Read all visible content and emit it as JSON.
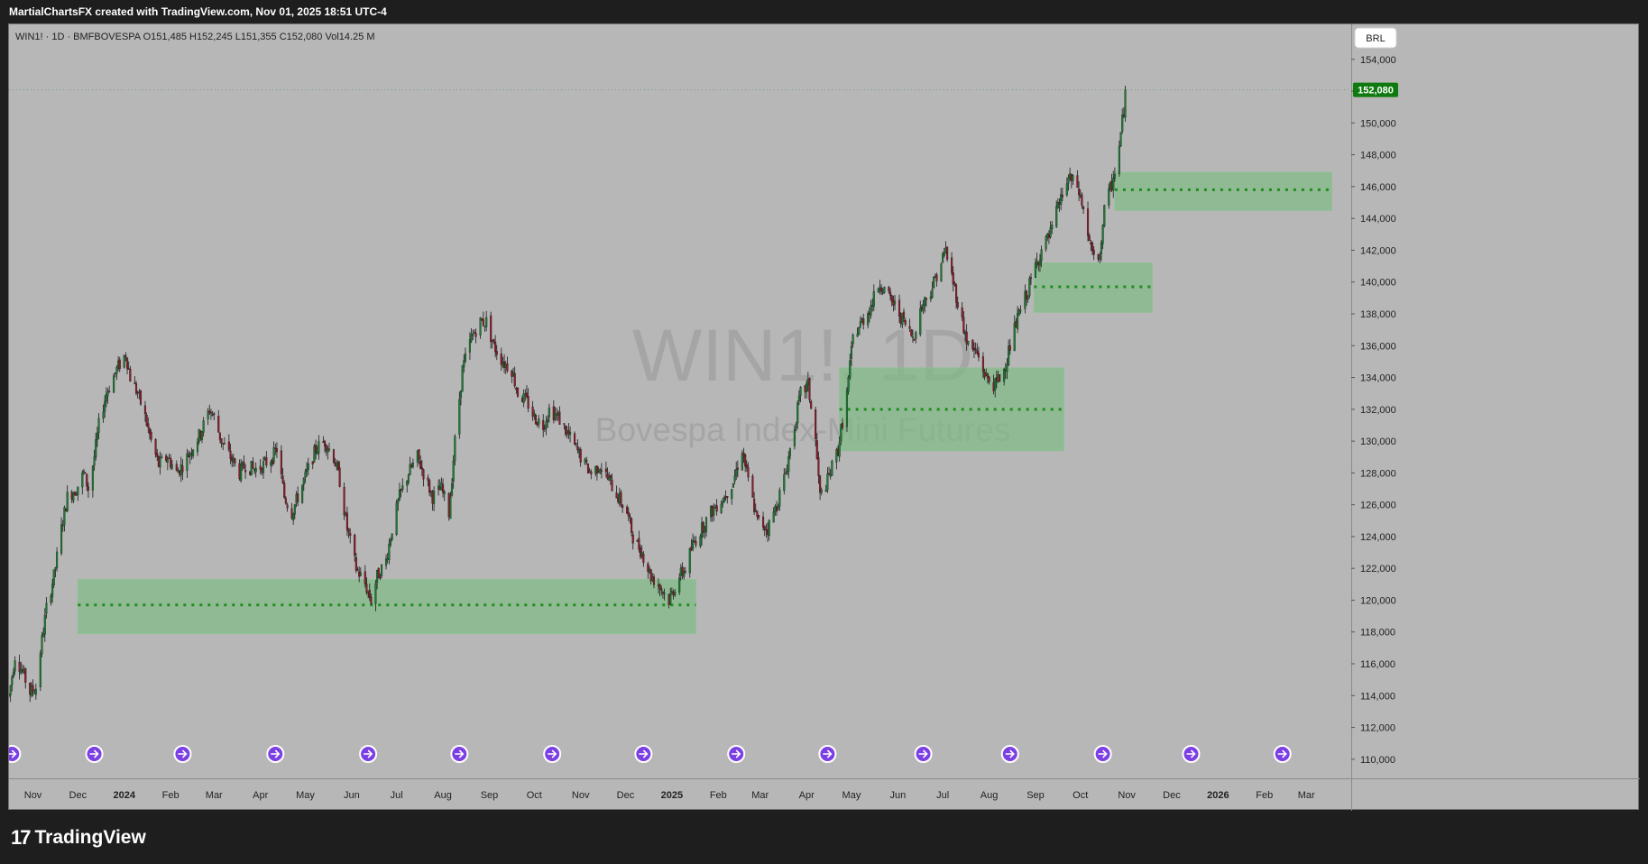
{
  "header": {
    "credit": "MartialChartsFX created with TradingView.com, Nov 01, 2025 18:51 UTC-4"
  },
  "legend": {
    "symbol": "WIN1! · 1D · BMFBOVESPA",
    "ohlcv": [
      {
        "k": "O",
        "v": "151,485"
      },
      {
        "k": "H",
        "v": "152,245"
      },
      {
        "k": "L",
        "v": "151,355"
      },
      {
        "k": "C",
        "v": "152,080"
      },
      {
        "k": "Vol",
        "v": "14.25 M"
      }
    ]
  },
  "currency_button": "BRL",
  "watermark": {
    "line1": "WIN1!, 1D",
    "line2": "Bovespa Index-Mini Futures"
  },
  "footer": {
    "brand": "TradingView",
    "mark": "17"
  },
  "colors": {
    "up": "#1b7a32",
    "down": "#8b1a2a",
    "wick": "#1a1a1a",
    "zone_fill": "#7fba84",
    "zone_line": "#1e8c1e",
    "last_price_bg": "#0f7a0f",
    "event_icon": "#7b3fe4",
    "background": "#b7b7b7"
  },
  "chart_data": {
    "type": "candlestick",
    "title": "WIN1!, 1D",
    "subtitle": "Bovespa Index-Mini Futures",
    "x_unit": "date",
    "x_range": [
      "2023-10-16",
      "2026-03-31"
    ],
    "y_range": [
      108800,
      156200
    ],
    "y_ticks": [
      110000,
      112000,
      114000,
      116000,
      118000,
      120000,
      122000,
      124000,
      126000,
      128000,
      130000,
      132000,
      134000,
      136000,
      138000,
      140000,
      142000,
      144000,
      146000,
      148000,
      150000,
      152000,
      154000
    ],
    "y_tick_labels": [
      "110,000",
      "112,000",
      "114,000",
      "116,000",
      "118,000",
      "120,000",
      "122,000",
      "124,000",
      "126,000",
      "128,000",
      "130,000",
      "132,000",
      "134,000",
      "136,000",
      "138,000",
      "140,000",
      "142,000",
      "144,000",
      "146,000",
      "148,000",
      "150,000",
      "152,000",
      "154,000"
    ],
    "x_ticks": [
      {
        "date": "2023-11-01",
        "label": "Nov",
        "bold": false
      },
      {
        "date": "2023-12-01",
        "label": "Dec",
        "bold": false
      },
      {
        "date": "2024-01-01",
        "label": "2024",
        "bold": true
      },
      {
        "date": "2024-02-01",
        "label": "Feb",
        "bold": false
      },
      {
        "date": "2024-03-01",
        "label": "Mar",
        "bold": false
      },
      {
        "date": "2024-04-01",
        "label": "Apr",
        "bold": false
      },
      {
        "date": "2024-05-01",
        "label": "May",
        "bold": false
      },
      {
        "date": "2024-06-01",
        "label": "Jun",
        "bold": false
      },
      {
        "date": "2024-07-01",
        "label": "Jul",
        "bold": false
      },
      {
        "date": "2024-08-01",
        "label": "Aug",
        "bold": false
      },
      {
        "date": "2024-09-01",
        "label": "Sep",
        "bold": false
      },
      {
        "date": "2024-10-01",
        "label": "Oct",
        "bold": false
      },
      {
        "date": "2024-11-01",
        "label": "Nov",
        "bold": false
      },
      {
        "date": "2024-12-01",
        "label": "Dec",
        "bold": false
      },
      {
        "date": "2025-01-01",
        "label": "2025",
        "bold": true
      },
      {
        "date": "2025-02-01",
        "label": "Feb",
        "bold": false
      },
      {
        "date": "2025-03-01",
        "label": "Mar",
        "bold": false
      },
      {
        "date": "2025-04-01",
        "label": "Apr",
        "bold": false
      },
      {
        "date": "2025-05-01",
        "label": "May",
        "bold": false
      },
      {
        "date": "2025-06-01",
        "label": "Jun",
        "bold": false
      },
      {
        "date": "2025-07-01",
        "label": "Jul",
        "bold": false
      },
      {
        "date": "2025-08-01",
        "label": "Aug",
        "bold": false
      },
      {
        "date": "2025-09-01",
        "label": "Sep",
        "bold": false
      },
      {
        "date": "2025-10-01",
        "label": "Oct",
        "bold": false
      },
      {
        "date": "2025-11-01",
        "label": "Nov",
        "bold": false
      },
      {
        "date": "2025-12-01",
        "label": "Dec",
        "bold": false
      },
      {
        "date": "2026-01-01",
        "label": "2026",
        "bold": true
      },
      {
        "date": "2026-02-01",
        "label": "Feb",
        "bold": false
      },
      {
        "date": "2026-03-01",
        "label": "Mar",
        "bold": false
      }
    ],
    "last_price": 152080,
    "last_price_label": "152,080",
    "grid": false,
    "price_path": [
      [
        "2023-10-16",
        114000
      ],
      [
        "2023-10-20",
        116500
      ],
      [
        "2023-10-25",
        115500
      ],
      [
        "2023-10-30",
        114200
      ],
      [
        "2023-11-03",
        114500
      ],
      [
        "2023-11-06",
        116800
      ],
      [
        "2023-11-10",
        119500
      ],
      [
        "2023-11-15",
        121500
      ],
      [
        "2023-11-20",
        124500
      ],
      [
        "2023-11-24",
        126500
      ],
      [
        "2023-11-30",
        127000
      ],
      [
        "2023-12-05",
        128000
      ],
      [
        "2023-12-08",
        127000
      ],
      [
        "2023-12-12",
        129000
      ],
      [
        "2023-12-15",
        131000
      ],
      [
        "2023-12-20",
        133000
      ],
      [
        "2023-12-27",
        134500
      ],
      [
        "2024-01-02",
        135500
      ],
      [
        "2024-01-05",
        134000
      ],
      [
        "2024-01-10",
        133000
      ],
      [
        "2024-01-15",
        131500
      ],
      [
        "2024-01-19",
        130000
      ],
      [
        "2024-01-24",
        128500
      ],
      [
        "2024-01-30",
        129000
      ],
      [
        "2024-02-05",
        128000
      ],
      [
        "2024-02-09",
        128500
      ],
      [
        "2024-02-15",
        129500
      ],
      [
        "2024-02-21",
        130500
      ],
      [
        "2024-02-27",
        132000
      ],
      [
        "2024-03-01",
        131500
      ],
      [
        "2024-03-06",
        130000
      ],
      [
        "2024-03-12",
        129000
      ],
      [
        "2024-03-18",
        128000
      ],
      [
        "2024-03-22",
        128500
      ],
      [
        "2024-03-28",
        128200
      ],
      [
        "2024-04-03",
        128500
      ],
      [
        "2024-04-09",
        129000
      ],
      [
        "2024-04-12",
        129500
      ],
      [
        "2024-04-17",
        126500
      ],
      [
        "2024-04-22",
        125500
      ],
      [
        "2024-04-26",
        126500
      ],
      [
        "2024-05-02",
        128000
      ],
      [
        "2024-05-08",
        129500
      ],
      [
        "2024-05-14",
        130000
      ],
      [
        "2024-05-20",
        129000
      ],
      [
        "2024-05-24",
        127500
      ],
      [
        "2024-05-29",
        124500
      ],
      [
        "2024-06-04",
        122000
      ],
      [
        "2024-06-10",
        121000
      ],
      [
        "2024-06-14",
        120000
      ],
      [
        "2024-06-18",
        121500
      ],
      [
        "2024-06-24",
        122500
      ],
      [
        "2024-06-28",
        124500
      ],
      [
        "2024-07-03",
        126500
      ],
      [
        "2024-07-09",
        128000
      ],
      [
        "2024-07-15",
        129000
      ],
      [
        "2024-07-19",
        128000
      ],
      [
        "2024-07-25",
        126500
      ],
      [
        "2024-07-31",
        127000
      ],
      [
        "2024-08-05",
        125500
      ],
      [
        "2024-08-09",
        130000
      ],
      [
        "2024-08-14",
        134500
      ],
      [
        "2024-08-20",
        136500
      ],
      [
        "2024-08-26",
        137500
      ],
      [
        "2024-08-30",
        137500
      ],
      [
        "2024-09-04",
        136000
      ],
      [
        "2024-09-10",
        135000
      ],
      [
        "2024-09-16",
        134500
      ],
      [
        "2024-09-20",
        133000
      ],
      [
        "2024-09-26",
        132500
      ],
      [
        "2024-10-01",
        131500
      ],
      [
        "2024-10-07",
        131000
      ],
      [
        "2024-10-11",
        132000
      ],
      [
        "2024-10-17",
        131500
      ],
      [
        "2024-10-23",
        130500
      ],
      [
        "2024-10-29",
        129500
      ],
      [
        "2024-11-04",
        128500
      ],
      [
        "2024-11-08",
        128000
      ],
      [
        "2024-11-14",
        128500
      ],
      [
        "2024-11-20",
        127500
      ],
      [
        "2024-11-26",
        126500
      ],
      [
        "2024-12-02",
        125500
      ],
      [
        "2024-12-06",
        124000
      ],
      [
        "2024-12-12",
        123000
      ],
      [
        "2024-12-18",
        121500
      ],
      [
        "2024-12-23",
        121000
      ],
      [
        "2024-12-30",
        120000
      ],
      [
        "2025-01-06",
        121500
      ],
      [
        "2025-01-10",
        122000
      ],
      [
        "2025-01-15",
        123500
      ],
      [
        "2025-01-21",
        124500
      ],
      [
        "2025-01-27",
        125500
      ],
      [
        "2025-01-31",
        126000
      ],
      [
        "2025-02-05",
        126500
      ],
      [
        "2025-02-11",
        127500
      ],
      [
        "2025-02-17",
        129500
      ],
      [
        "2025-02-21",
        127500
      ],
      [
        "2025-02-27",
        125000
      ],
      [
        "2025-03-06",
        124500
      ],
      [
        "2025-03-12",
        126000
      ],
      [
        "2025-03-18",
        128000
      ],
      [
        "2025-03-24",
        131000
      ],
      [
        "2025-03-28",
        133000
      ],
      [
        "2025-04-02",
        133500
      ],
      [
        "2025-04-07",
        130000
      ],
      [
        "2025-04-10",
        126500
      ],
      [
        "2025-04-15",
        127500
      ],
      [
        "2025-04-22",
        129500
      ],
      [
        "2025-04-28",
        133000
      ],
      [
        "2025-05-02",
        136500
      ],
      [
        "2025-05-08",
        137500
      ],
      [
        "2025-05-14",
        138500
      ],
      [
        "2025-05-20",
        140000
      ],
      [
        "2025-05-26",
        139000
      ],
      [
        "2025-05-30",
        138500
      ],
      [
        "2025-06-05",
        137500
      ],
      [
        "2025-06-11",
        136500
      ],
      [
        "2025-06-17",
        138500
      ],
      [
        "2025-06-23",
        139500
      ],
      [
        "2025-06-27",
        140500
      ],
      [
        "2025-07-03",
        142000
      ],
      [
        "2025-07-08",
        140000
      ],
      [
        "2025-07-14",
        137500
      ],
      [
        "2025-07-18",
        136000
      ],
      [
        "2025-07-24",
        135500
      ],
      [
        "2025-07-30",
        134000
      ],
      [
        "2025-08-05",
        133500
      ],
      [
        "2025-08-11",
        134500
      ],
      [
        "2025-08-15",
        136000
      ],
      [
        "2025-08-21",
        138000
      ],
      [
        "2025-08-27",
        139500
      ],
      [
        "2025-09-01",
        141000
      ],
      [
        "2025-09-05",
        142000
      ],
      [
        "2025-09-11",
        143000
      ],
      [
        "2025-09-17",
        145000
      ],
      [
        "2025-09-23",
        146500
      ],
      [
        "2025-09-29",
        146000
      ],
      [
        "2025-10-03",
        144500
      ],
      [
        "2025-10-08",
        142000
      ],
      [
        "2025-10-13",
        141000
      ],
      [
        "2025-10-17",
        144500
      ],
      [
        "2025-10-23",
        146500
      ],
      [
        "2025-10-27",
        148500
      ],
      [
        "2025-10-31",
        151700
      ]
    ],
    "zones": [
      {
        "start": "2023-12-01",
        "end": "2025-01-17",
        "top": 121300,
        "bottom": 117900,
        "level": 119700
      },
      {
        "start": "2025-04-23",
        "end": "2025-09-20",
        "top": 134600,
        "bottom": 129400,
        "level": 132000
      },
      {
        "start": "2025-08-31",
        "end": "2025-11-18",
        "top": 141200,
        "bottom": 138100,
        "level": 139700
      },
      {
        "start": "2025-10-24",
        "end": "2026-03-18",
        "top": 146900,
        "bottom": 144500,
        "level": 145800
      }
    ],
    "events": [
      "2023-10-18",
      "2023-12-12",
      "2024-02-09",
      "2024-04-11",
      "2024-06-12",
      "2024-08-12",
      "2024-10-13",
      "2024-12-13",
      "2025-02-13",
      "2025-04-15",
      "2025-06-18",
      "2025-08-15",
      "2025-10-16",
      "2025-12-14",
      "2026-02-13"
    ]
  }
}
